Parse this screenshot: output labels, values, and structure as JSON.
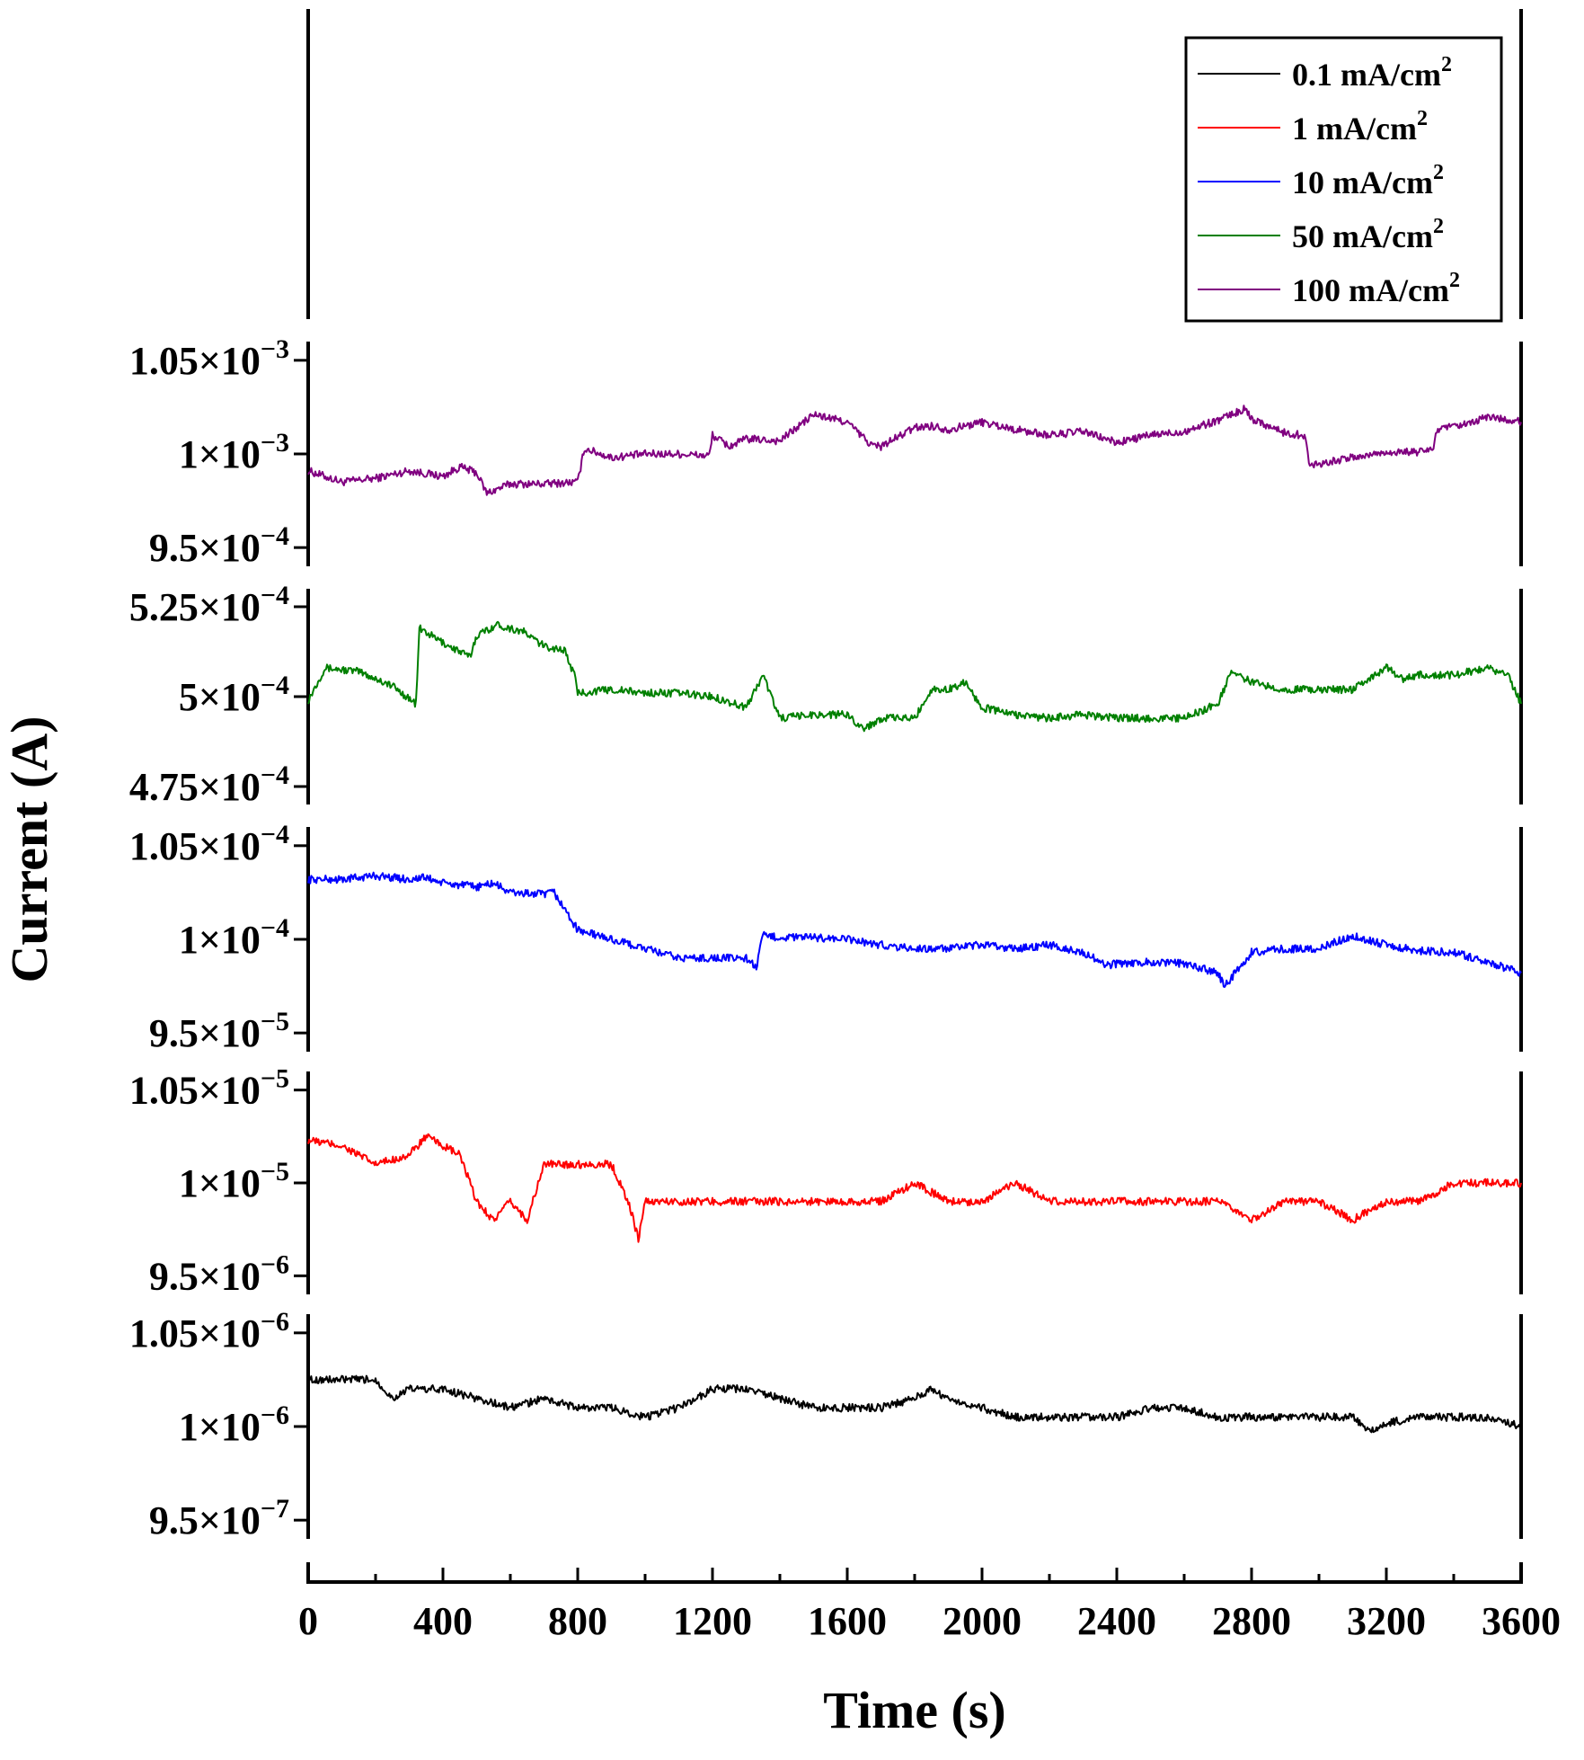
{
  "chart_data": {
    "type": "line",
    "xlabel": "Time (s)",
    "ylabel": "Current (A)",
    "xlim": [
      0,
      3600
    ],
    "xticks": [
      "0",
      "400",
      "800",
      "1200",
      "1600",
      "2000",
      "2400",
      "2800",
      "3200",
      "3600"
    ],
    "legend": {
      "placement": "top-right",
      "entries": [
        "0.1 mA/cm",
        "1 mA/cm",
        "10 mA/cm",
        "50 mA/cm",
        "100 mA/cm"
      ],
      "superscript": "2"
    },
    "panels": [
      {
        "name": "100 mA/cm2",
        "color": "#800080",
        "ylim": [
          0.00094,
          0.00106
        ],
        "yticks": [
          {
            "value": 0.00105,
            "mantissa": "1.05×10",
            "exp": "−3"
          },
          {
            "value": 0.001,
            "mantissa": "1×10",
            "exp": "−3"
          },
          {
            "value": 0.00095,
            "mantissa": "9.5×10",
            "exp": "−4"
          }
        ],
        "x": [
          0,
          100,
          200,
          300,
          400,
          450,
          500,
          530,
          600,
          700,
          800,
          820,
          900,
          1000,
          1100,
          1190,
          1200,
          1250,
          1300,
          1400,
          1500,
          1550,
          1600,
          1670,
          1700,
          1800,
          1850,
          1900,
          2000,
          2100,
          2200,
          2300,
          2400,
          2500,
          2600,
          2700,
          2780,
          2800,
          2900,
          2960,
          2970,
          3100,
          3200,
          3300,
          3340,
          3350,
          3450,
          3500,
          3600
        ],
        "y": [
          0.000991,
          0.000985,
          0.000987,
          0.000991,
          0.000988,
          0.000993,
          0.00099,
          0.000979,
          0.000984,
          0.000984,
          0.000985,
          0.001003,
          0.000998,
          0.001,
          0.001,
          0.000999,
          0.00101,
          0.001004,
          0.001008,
          0.001007,
          0.001021,
          0.001019,
          0.001017,
          0.001005,
          0.001004,
          0.001014,
          0.001015,
          0.001013,
          0.001017,
          0.001013,
          0.00101,
          0.001012,
          0.001006,
          0.00101,
          0.001012,
          0.001018,
          0.001024,
          0.001019,
          0.001011,
          0.00101,
          0.000994,
          0.000998,
          0.001001,
          0.001001,
          0.001003,
          0.001013,
          0.001016,
          0.00102,
          0.001017
        ]
      },
      {
        "name": "50 mA/cm2",
        "color": "#008000",
        "ylim": [
          0.00047,
          0.00053
        ],
        "yticks": [
          {
            "value": 0.000525,
            "mantissa": "5.25×10",
            "exp": "−4"
          },
          {
            "value": 0.0005,
            "mantissa": "5×10",
            "exp": "−4"
          },
          {
            "value": 0.000475,
            "mantissa": "4.75×10",
            "exp": "−4"
          }
        ],
        "x": [
          0,
          50,
          150,
          200,
          250,
          320,
          330,
          400,
          480,
          500,
          560,
          640,
          700,
          760,
          790,
          800,
          900,
          1000,
          1100,
          1200,
          1300,
          1350,
          1400,
          1500,
          1600,
          1650,
          1700,
          1800,
          1850,
          1900,
          1950,
          2000,
          2100,
          2200,
          2300,
          2400,
          2500,
          2600,
          2700,
          2740,
          2800,
          2900,
          3000,
          3100,
          3200,
          3250,
          3300,
          3400,
          3500,
          3560,
          3600
        ],
        "y": [
          0.000499,
          0.000508,
          0.000507,
          0.000505,
          0.000503,
          0.000498,
          0.000519,
          0.000515,
          0.000511,
          0.000517,
          0.00052,
          0.000518,
          0.000514,
          0.000513,
          0.000506,
          0.000501,
          0.000502,
          0.000501,
          0.000501,
          0.0005,
          0.000497,
          0.000506,
          0.000494,
          0.000495,
          0.000495,
          0.000491,
          0.000494,
          0.000494,
          0.000502,
          0.000502,
          0.000504,
          0.000497,
          0.000495,
          0.000494,
          0.000495,
          0.000494,
          0.000494,
          0.000494,
          0.000498,
          0.000507,
          0.000504,
          0.000502,
          0.000502,
          0.000502,
          0.000508,
          0.000505,
          0.000506,
          0.000506,
          0.000508,
          0.000506,
          0.000498
        ]
      },
      {
        "name": "10 mA/cm2",
        "color": "#0000ff",
        "ylim": [
          9.4e-05,
          0.000106
        ],
        "yticks": [
          {
            "value": 0.000105,
            "mantissa": "1.05×10",
            "exp": "−4"
          },
          {
            "value": 0.0001,
            "mantissa": "1×10",
            "exp": "−4"
          },
          {
            "value": 9.5e-05,
            "mantissa": "9.5×10",
            "exp": "−5"
          }
        ],
        "x": [
          0,
          100,
          200,
          300,
          350,
          400,
          500,
          550,
          600,
          700,
          730,
          800,
          900,
          1000,
          1100,
          1200,
          1300,
          1330,
          1350,
          1400,
          1500,
          1600,
          1700,
          1800,
          1900,
          2000,
          2100,
          2200,
          2300,
          2370,
          2400,
          2500,
          2600,
          2700,
          2720,
          2800,
          2900,
          3000,
          3100,
          3200,
          3300,
          3400,
          3500,
          3600
        ],
        "y": [
          0.0001032,
          0.0001032,
          0.0001034,
          0.0001032,
          0.0001033,
          0.000103,
          0.0001028,
          0.000103,
          0.0001025,
          0.0001024,
          0.0001025,
          0.0001005,
          0.0001,
          9.95e-05,
          9.9e-05,
          9.9e-05,
          9.9e-05,
          9.85e-05,
          0.0001002,
          0.0001001,
          0.0001001,
          0.0001,
          9.97e-05,
          9.95e-05,
          9.95e-05,
          9.97e-05,
          9.95e-05,
          9.97e-05,
          9.93e-05,
          9.86e-05,
          9.87e-05,
          9.88e-05,
          9.87e-05,
          9.82e-05,
          9.75e-05,
          9.93e-05,
          9.95e-05,
          9.95e-05,
          0.0001002,
          9.97e-05,
          9.94e-05,
          9.93e-05,
          9.88e-05,
          9.82e-05
        ]
      },
      {
        "name": "1 mA/cm2",
        "color": "#ff0000",
        "ylim": [
          9.4e-06,
          1.06e-05
        ],
        "yticks": [
          {
            "value": 1.05e-05,
            "mantissa": "1.05×10",
            "exp": "−5"
          },
          {
            "value": 1e-05,
            "mantissa": "1×10",
            "exp": "−5"
          },
          {
            "value": 9.5e-06,
            "mantissa": "9.5×10",
            "exp": "−6"
          }
        ],
        "x": [
          0,
          100,
          200,
          300,
          350,
          400,
          450,
          500,
          550,
          600,
          650,
          700,
          800,
          900,
          950,
          980,
          1000,
          1100,
          1200,
          1300,
          1400,
          1500,
          1600,
          1700,
          1800,
          1900,
          2000,
          2100,
          2200,
          2300,
          2400,
          2500,
          2600,
          2700,
          2800,
          2900,
          3000,
          3100,
          3200,
          3300,
          3400,
          3500,
          3600
        ],
        "y": [
          1.023e-05,
          1.02e-05,
          1.01e-05,
          1.015e-05,
          1.025e-05,
          1.02e-05,
          1.015e-05,
          9.9e-06,
          9.8e-06,
          9.9e-06,
          9.8e-06,
          1.01e-05,
          1.01e-05,
          1.01e-05,
          9.9e-06,
          9.7e-06,
          9.9e-06,
          9.9e-06,
          9.9e-06,
          9.9e-06,
          9.9e-06,
          9.9e-06,
          9.9e-06,
          9.9e-06,
          1e-05,
          9.9e-06,
          9.9e-06,
          1e-05,
          9.9e-06,
          9.9e-06,
          9.9e-06,
          9.9e-06,
          9.9e-06,
          9.9e-06,
          9.8e-06,
          9.9e-06,
          9.9e-06,
          9.8e-06,
          9.9e-06,
          9.9e-06,
          1e-05,
          1e-05,
          1e-05
        ]
      },
      {
        "name": "0.1 mA/cm2",
        "color": "#000000",
        "ylim": [
          9.4e-07,
          1.06e-06
        ],
        "yticks": [
          {
            "value": 1.05e-06,
            "mantissa": "1.05×10",
            "exp": "−6"
          },
          {
            "value": 1e-06,
            "mantissa": "1×10",
            "exp": "−6"
          },
          {
            "value": 9.5e-07,
            "mantissa": "9.5×10",
            "exp": "−7"
          }
        ],
        "x": [
          0,
          100,
          200,
          250,
          300,
          400,
          500,
          600,
          700,
          800,
          900,
          1000,
          1100,
          1200,
          1300,
          1400,
          1500,
          1600,
          1700,
          1800,
          1850,
          1900,
          2000,
          2100,
          2200,
          2300,
          2400,
          2500,
          2600,
          2700,
          2800,
          2900,
          3000,
          3100,
          3150,
          3200,
          3300,
          3400,
          3500,
          3600
        ],
        "y": [
          1.025e-06,
          1.025e-06,
          1.025e-06,
          1.015e-06,
          1.02e-06,
          1.02e-06,
          1.015e-06,
          1.01e-06,
          1.015e-06,
          1.01e-06,
          1.01e-06,
          1.005e-06,
          1.01e-06,
          1.02e-06,
          1.02e-06,
          1.015e-06,
          1.01e-06,
          1.01e-06,
          1.01e-06,
          1.015e-06,
          1.02e-06,
          1.015e-06,
          1.01e-06,
          1.005e-06,
          1.005e-06,
          1.005e-06,
          1.005e-06,
          1.01e-06,
          1.01e-06,
          1.005e-06,
          1.005e-06,
          1.005e-06,
          1.005e-06,
          1.005e-06,
          9.97e-07,
          1.002e-06,
          1.005e-06,
          1.005e-06,
          1.005e-06,
          1e-06
        ]
      }
    ]
  }
}
